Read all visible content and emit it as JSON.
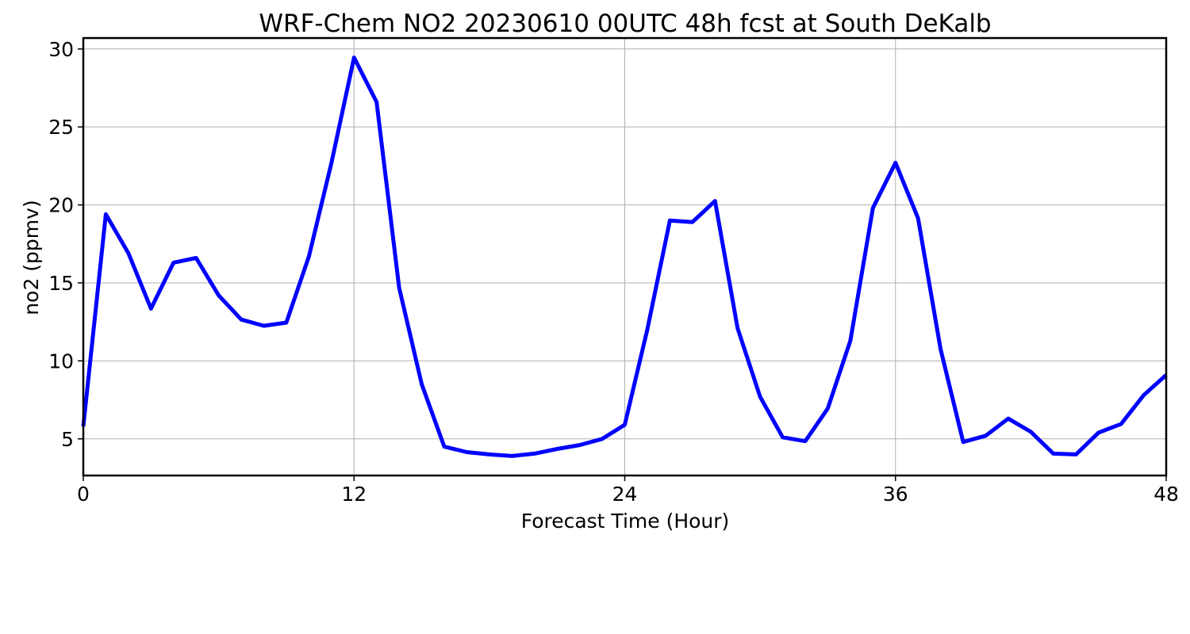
{
  "chart_data": {
    "type": "line",
    "title": "WRF-Chem NO2  20230610 00UTC 48h fcst at South DeKalb",
    "xlabel": "Forecast Time (Hour)",
    "ylabel": "no2  (ppmv)",
    "xlim": [
      0,
      48
    ],
    "ylim": [
      2.65,
      30.7
    ],
    "xticks": [
      0,
      12,
      24,
      36,
      48
    ],
    "yticks": [
      5,
      10,
      15,
      20,
      25,
      30
    ],
    "grid": true,
    "series": [
      {
        "color": "#0000ff",
        "x": [
          0,
          1,
          2,
          3,
          4,
          5,
          6,
          7,
          8,
          9,
          10,
          11,
          12,
          13,
          14,
          15,
          16,
          17,
          18,
          19,
          20,
          21,
          22,
          23,
          24,
          25,
          26,
          27,
          28,
          29,
          30,
          31,
          32,
          33,
          34,
          35,
          36,
          37,
          38,
          39,
          40,
          41,
          42,
          43,
          44,
          45,
          46,
          47,
          48
        ],
        "y": [
          5.8,
          19.4,
          16.9,
          13.35,
          16.3,
          16.6,
          14.2,
          12.65,
          12.25,
          12.45,
          16.7,
          22.7,
          29.45,
          26.6,
          14.7,
          8.5,
          4.5,
          4.15,
          4.0,
          3.9,
          4.05,
          4.35,
          4.6,
          5.0,
          5.9,
          12.0,
          19.0,
          18.9,
          20.25,
          12.1,
          7.7,
          5.1,
          4.85,
          6.95,
          11.3,
          19.8,
          22.7,
          19.15,
          10.75,
          4.8,
          5.2,
          6.3,
          5.45,
          4.05,
          4.0,
          5.4,
          5.95,
          7.8,
          9.1
        ]
      }
    ]
  }
}
